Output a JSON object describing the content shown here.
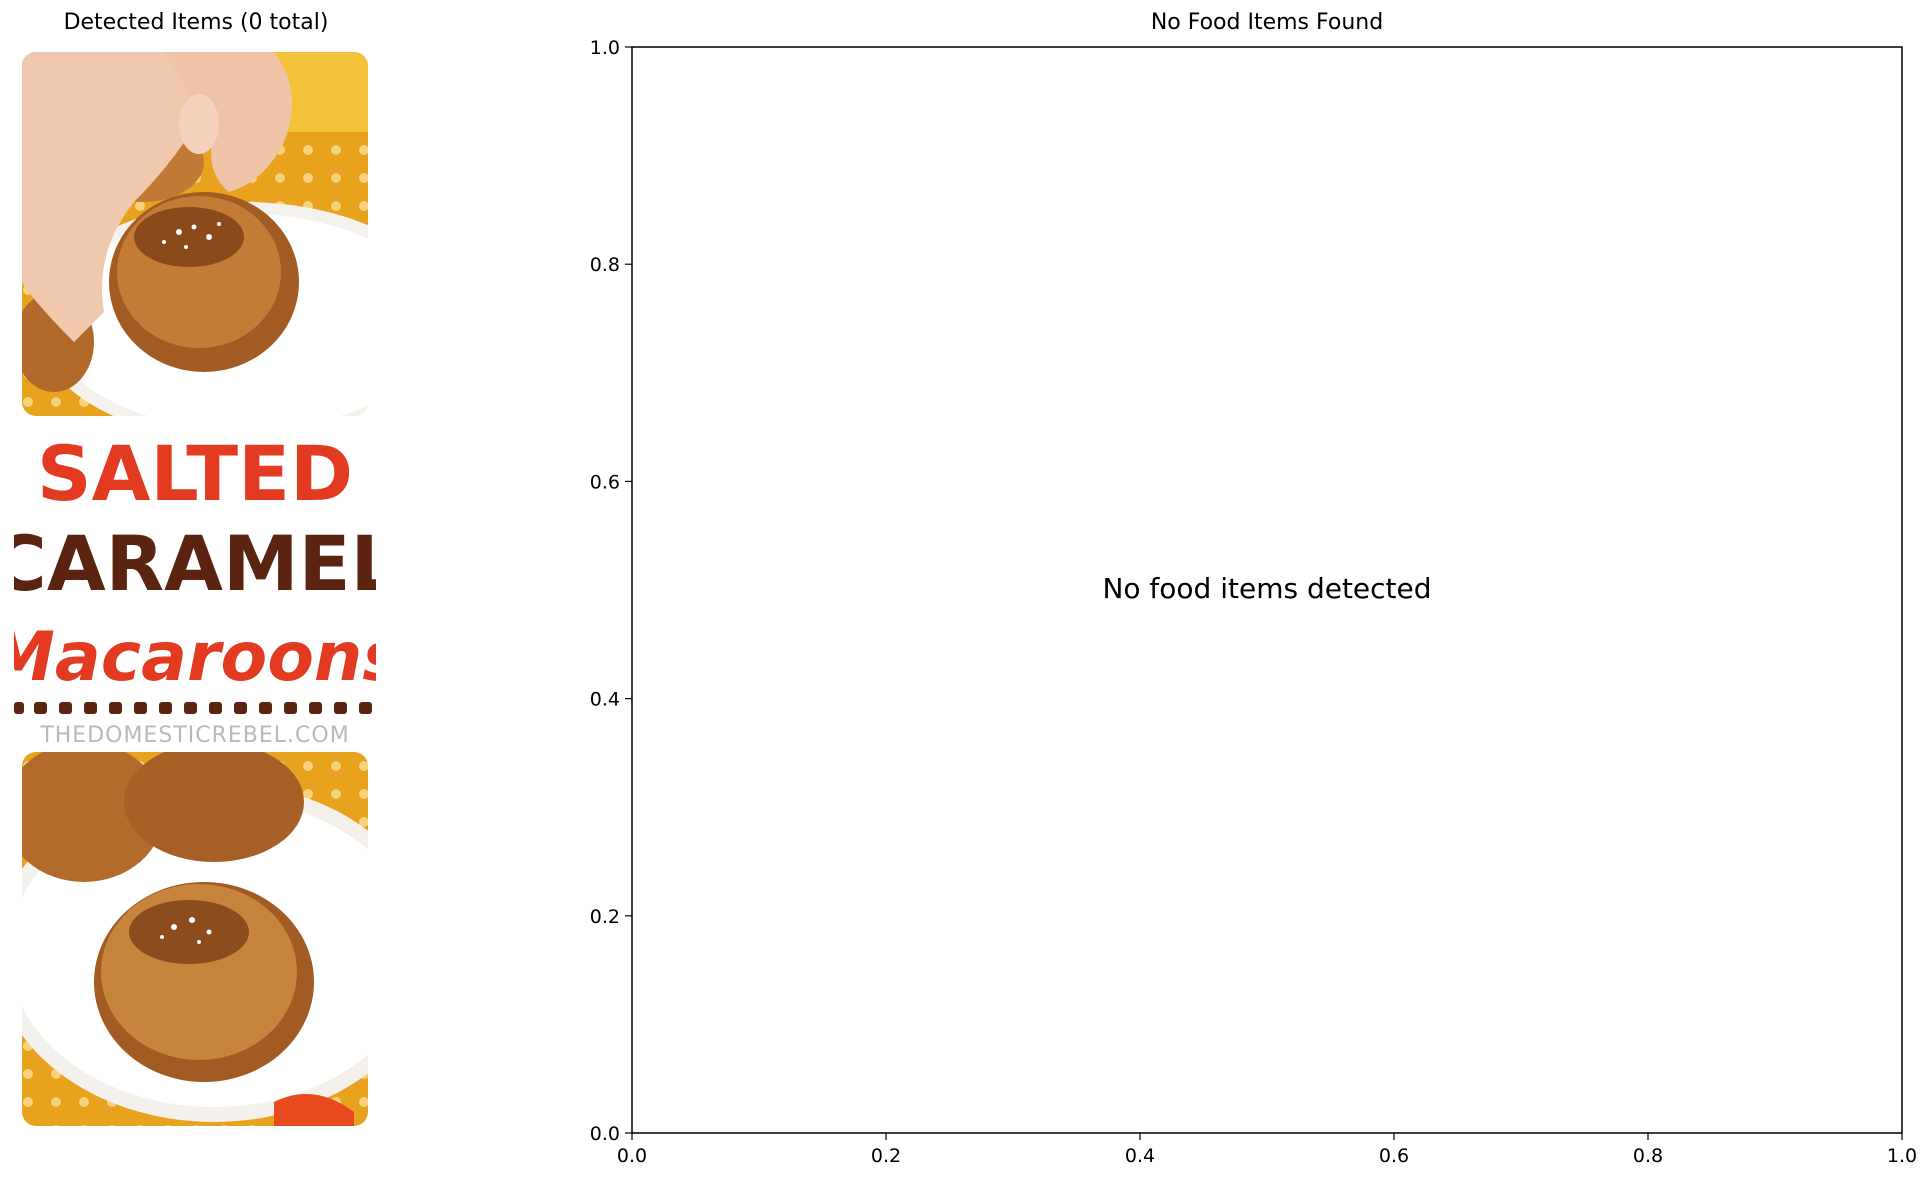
{
  "left_panel": {
    "title": "Detected Items (0 total)",
    "image": {
      "headline_line1": "SALTED",
      "headline_line2": "CARAMEL",
      "headline_line3": "Macaroons",
      "watermark": "THEDOMESTICREBEL.COM",
      "colors": {
        "red": "#e23b21",
        "brown": "#5a2410",
        "watermark": "#b9b9b9"
      }
    }
  },
  "chart_data": {
    "type": "scatter",
    "title": "No Food Items Found",
    "xlabel": "",
    "ylabel": "",
    "xlim": [
      0.0,
      1.0
    ],
    "ylim": [
      0.0,
      1.0
    ],
    "xticks": [
      "0.0",
      "0.2",
      "0.4",
      "0.6",
      "0.8",
      "1.0"
    ],
    "yticks": [
      "0.0",
      "0.2",
      "0.4",
      "0.6",
      "0.8",
      "1.0"
    ],
    "series": [],
    "annotations": [
      {
        "text": "No food items detected",
        "x": 0.5,
        "y": 0.5
      }
    ],
    "grid": false
  }
}
